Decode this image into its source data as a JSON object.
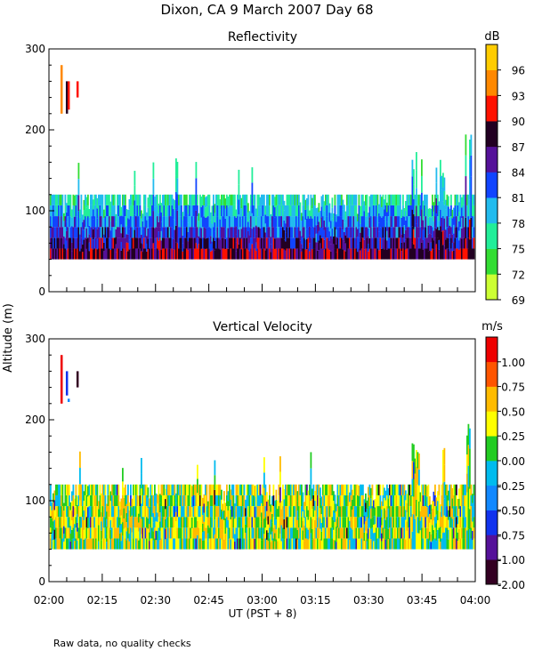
{
  "page": {
    "title": "Dixon, CA   9 March 2007   Day  68",
    "ylabel": "Altitude  (m)",
    "xlabel": "UT   (PST + 8)",
    "footnote": "Raw data, no quality checks"
  },
  "colors": {
    "reflectivity_scale": [
      "#ccff33",
      "#33dd33",
      "#22ee99",
      "#22bbee",
      "#1144ff",
      "#551199",
      "#220022",
      "#ff1100",
      "#ff8800",
      "#ffcc00"
    ],
    "velocity_scale": [
      "#330022",
      "#551199",
      "#1133ee",
      "#1188ff",
      "#00bbee",
      "#22cc22",
      "#ffff00",
      "#ffbb00",
      "#ff5500",
      "#ee0000"
    ]
  },
  "chart_data": [
    {
      "type": "heatmap",
      "title": "Reflectivity",
      "colorbar_unit": "dB",
      "colorbar_ticks": [
        "96",
        "93",
        "90",
        "87",
        "84",
        "81",
        "78",
        "75",
        "72",
        "69"
      ],
      "colorbar_range": [
        68,
        98
      ],
      "ylim": [
        0,
        300
      ],
      "y_ticks": [
        "300",
        "200",
        "100",
        "0"
      ],
      "y_tick_values": [
        300,
        200,
        100,
        0
      ],
      "xlim_minutes": [
        0,
        120
      ],
      "x_ticks": [
        "02:00",
        "02:15",
        "02:30",
        "02:45",
        "03:00",
        "03:15",
        "03:30",
        "03:45",
        "04:00"
      ],
      "main_band_m": [
        40,
        120
      ],
      "occasional_top_m": 140,
      "late_towers": [
        {
          "t": 103,
          "top": 180
        },
        {
          "t": 110,
          "top": 170
        },
        {
          "t": 118,
          "top": 200
        }
      ],
      "early_echoes": [
        {
          "t": 3.5,
          "bottom": 220,
          "top": 280,
          "value": 96
        },
        {
          "t": 5.0,
          "bottom": 220,
          "top": 260,
          "value": 87
        },
        {
          "t": 5.5,
          "bottom": 225,
          "top": 260,
          "value": 90
        },
        {
          "t": 8.0,
          "bottom": 240,
          "top": 260,
          "value": 90
        }
      ]
    },
    {
      "type": "heatmap",
      "title": "Vertical Velocity",
      "colorbar_unit": "m/s",
      "colorbar_ticks": [
        "1.00",
        "0.75",
        "0.50",
        "0.25",
        "0.00",
        "-0.25",
        "-0.50",
        "-0.75",
        "-1.00",
        "-2.00"
      ],
      "colorbar_range": [
        -2.25,
        1.25
      ],
      "ylim": [
        0,
        300
      ],
      "y_ticks": [
        "300",
        "200",
        "100",
        "0"
      ],
      "y_tick_values": [
        300,
        200,
        100,
        0
      ],
      "xlim_minutes": [
        0,
        120
      ],
      "x_ticks": [
        "02:00",
        "02:15",
        "02:30",
        "02:45",
        "03:00",
        "03:15",
        "03:30",
        "03:45",
        "04:00"
      ],
      "main_band_m": [
        40,
        120
      ],
      "occasional_top_m": 140,
      "late_towers": [
        {
          "t": 103,
          "top": 180
        },
        {
          "t": 110,
          "top": 170
        },
        {
          "t": 118,
          "top": 200
        }
      ],
      "early_echoes": [
        {
          "t": 3.5,
          "bottom": 220,
          "top": 280,
          "value": 1.0
        },
        {
          "t": 5.0,
          "bottom": 230,
          "top": 260,
          "value": -1.0
        },
        {
          "t": 5.5,
          "bottom": 222,
          "top": 226,
          "value": -0.5
        },
        {
          "t": 8.0,
          "bottom": 240,
          "top": 260,
          "value": -1.5
        }
      ]
    }
  ]
}
